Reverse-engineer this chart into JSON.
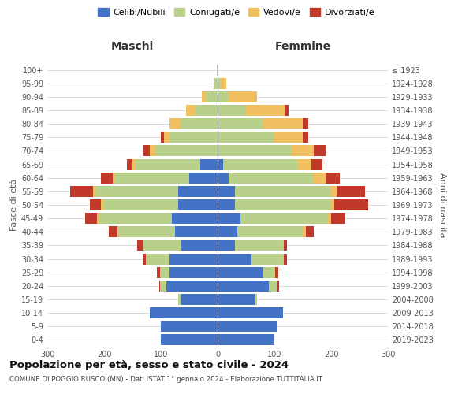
{
  "age_groups": [
    "0-4",
    "5-9",
    "10-14",
    "15-19",
    "20-24",
    "25-29",
    "30-34",
    "35-39",
    "40-44",
    "45-49",
    "50-54",
    "55-59",
    "60-64",
    "65-69",
    "70-74",
    "75-79",
    "80-84",
    "85-89",
    "90-94",
    "95-99",
    "100+"
  ],
  "birth_years": [
    "2019-2023",
    "2014-2018",
    "2009-2013",
    "2004-2008",
    "1999-2003",
    "1994-1998",
    "1989-1993",
    "1984-1988",
    "1979-1983",
    "1974-1978",
    "1969-1973",
    "1964-1968",
    "1959-1963",
    "1954-1958",
    "1949-1953",
    "1944-1948",
    "1939-1943",
    "1934-1938",
    "1929-1933",
    "1924-1928",
    "≤ 1923"
  ],
  "male_celibe": [
    100,
    100,
    120,
    65,
    90,
    85,
    85,
    65,
    75,
    80,
    70,
    70,
    50,
    30,
    0,
    0,
    0,
    0,
    0,
    0,
    0
  ],
  "male_coniug": [
    0,
    0,
    0,
    5,
    10,
    15,
    40,
    65,
    100,
    130,
    130,
    145,
    130,
    115,
    110,
    85,
    65,
    40,
    20,
    5,
    2
  ],
  "male_vedovo": [
    0,
    0,
    0,
    0,
    1,
    2,
    2,
    2,
    2,
    3,
    5,
    5,
    5,
    5,
    10,
    10,
    20,
    15,
    8,
    2,
    0
  ],
  "male_divorz": [
    0,
    0,
    0,
    0,
    2,
    5,
    5,
    10,
    15,
    20,
    20,
    40,
    20,
    10,
    10,
    5,
    0,
    0,
    0,
    0,
    0
  ],
  "female_nubile": [
    100,
    105,
    115,
    65,
    90,
    80,
    60,
    30,
    35,
    40,
    30,
    30,
    20,
    10,
    0,
    0,
    0,
    0,
    0,
    0,
    0
  ],
  "female_coniug": [
    0,
    0,
    0,
    5,
    15,
    20,
    55,
    85,
    115,
    155,
    170,
    170,
    150,
    130,
    130,
    100,
    80,
    50,
    20,
    5,
    0
  ],
  "female_vedova": [
    0,
    0,
    0,
    0,
    1,
    2,
    2,
    2,
    5,
    5,
    5,
    10,
    20,
    25,
    40,
    50,
    70,
    70,
    50,
    10,
    2
  ],
  "female_divorz": [
    0,
    0,
    0,
    0,
    2,
    5,
    5,
    5,
    15,
    25,
    60,
    50,
    25,
    20,
    20,
    10,
    10,
    5,
    0,
    0,
    0
  ],
  "colors": {
    "celibe": "#4472c4",
    "coniugato": "#b8d08a",
    "vedovo": "#f0c060",
    "divorziato": "#c0392b"
  },
  "xlim": 300,
  "title": "Popolazione per età, sesso e stato civile - 2024",
  "subtitle": "COMUNE DI POGGIO RUSCO (MN) - Dati ISTAT 1° gennaio 2024 - Elaborazione TUTTITALIA.IT",
  "ylabel_left": "Fasce di età",
  "ylabel_right": "Anni di nascita",
  "xlabel_male": "Maschi",
  "xlabel_female": "Femmine",
  "legend_labels": [
    "Celibi/Nubili",
    "Coniugati/e",
    "Vedovi/e",
    "Divorziati/e"
  ],
  "bg_color": "#ffffff",
  "grid_color": "#cccccc"
}
